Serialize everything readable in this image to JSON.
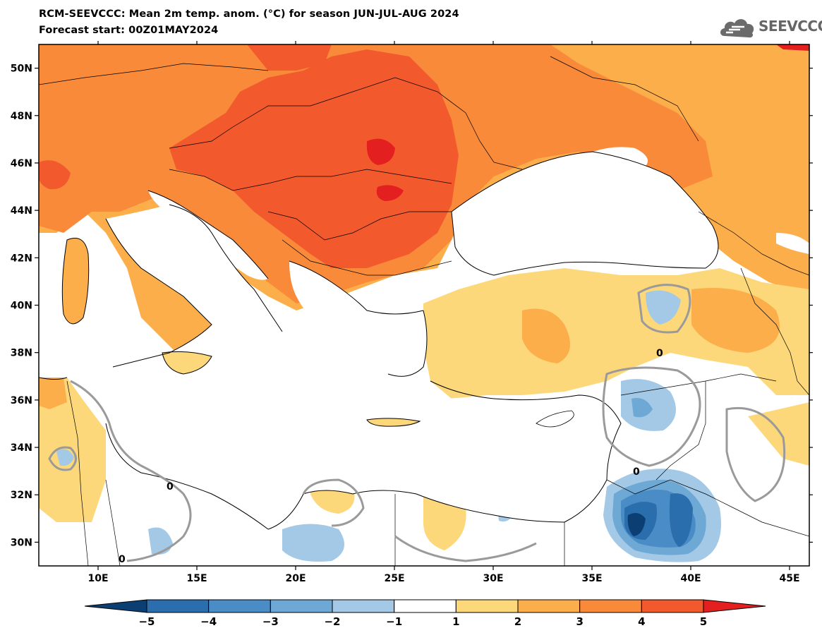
{
  "title": {
    "line1": "RCM-SEEVCCC: Mean 2m temp. anom. (°C) for season JUN-JUL-AUG 2024",
    "line2": "Forecast start: 00Z01MAY2024"
  },
  "logo": {
    "text": "SEEVCCC",
    "icon": "cloud-icon"
  },
  "map": {
    "lon_range": [
      7,
      46
    ],
    "lat_range": [
      29,
      51
    ],
    "lon_ticks": [
      {
        "value": 10,
        "label": "10E"
      },
      {
        "value": 15,
        "label": "15E"
      },
      {
        "value": 20,
        "label": "20E"
      },
      {
        "value": 25,
        "label": "25E"
      },
      {
        "value": 30,
        "label": "30E"
      },
      {
        "value": 35,
        "label": "35E"
      },
      {
        "value": 40,
        "label": "40E"
      },
      {
        "value": 45,
        "label": "45E"
      }
    ],
    "lat_ticks": [
      {
        "value": 50,
        "label": "50N"
      },
      {
        "value": 48,
        "label": "48N"
      },
      {
        "value": 46,
        "label": "46N"
      },
      {
        "value": 44,
        "label": "44N"
      },
      {
        "value": 42,
        "label": "42N"
      },
      {
        "value": 40,
        "label": "40N"
      },
      {
        "value": 38,
        "label": "38N"
      },
      {
        "value": 36,
        "label": "36N"
      },
      {
        "value": 34,
        "label": "34N"
      },
      {
        "value": 32,
        "label": "32N"
      },
      {
        "value": 30,
        "label": "30N"
      }
    ],
    "zero_contour_label": "0"
  },
  "colorbar": {
    "labels": [
      "−5",
      "−4",
      "−3",
      "−2",
      "−1",
      "1",
      "2",
      "3",
      "4",
      "5"
    ],
    "colors": [
      "#0b3f73",
      "#2b6ead",
      "#4a8cc6",
      "#6ea8d5",
      "#a3c9e6",
      "#ffffff",
      "#fdd87a",
      "#fcae4a",
      "#f98a3a",
      "#f25a2e",
      "#e31f1f"
    ]
  }
}
